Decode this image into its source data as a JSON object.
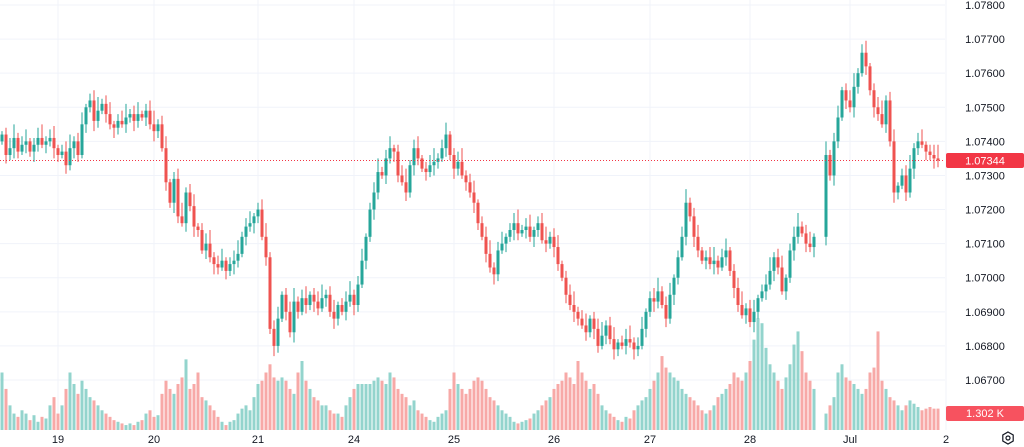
{
  "chart_data": {
    "type": "candlestick",
    "symbol_interval": "1h",
    "colors": {
      "up": "#26a69a",
      "down": "#ef5350",
      "up_volume": "#93d4cd",
      "down_volume": "#f7a9a7",
      "grid": "#f0f3fa",
      "price_label": "#f23645"
    },
    "ylim": [
      1.067,
      1.078
    ],
    "price_ticks": [
      "1.07800",
      "1.07700",
      "1.07600",
      "1.07500",
      "1.07400",
      "1.07300",
      "1.07200",
      "1.07100",
      "1.07000",
      "1.06900",
      "1.06800",
      "1.06700"
    ],
    "x_ticks": [
      {
        "label": "19",
        "index": 14
      },
      {
        "label": "20",
        "index": 38
      },
      {
        "label": "21",
        "index": 64
      },
      {
        "label": "24",
        "index": 88
      },
      {
        "label": "25",
        "index": 113
      },
      {
        "label": "26",
        "index": 138
      },
      {
        "label": "27",
        "index": 162
      },
      {
        "label": "28",
        "index": 187
      },
      {
        "label": "Jul",
        "index": 212
      },
      {
        "label": "2",
        "index": 236
      }
    ],
    "first_open": 1.074,
    "closes": [
      1.0742,
      1.0736,
      1.0738,
      1.0741,
      1.0737,
      1.0739,
      1.074,
      1.0737,
      1.0739,
      1.0741,
      1.0739,
      1.074,
      1.0741,
      1.0738,
      1.0736,
      1.0737,
      1.0733,
      1.0738,
      1.074,
      1.0736,
      1.0745,
      1.075,
      1.0752,
      1.0746,
      1.0749,
      1.0751,
      1.0748,
      1.0745,
      1.0744,
      1.0746,
      1.0745,
      1.0747,
      1.0748,
      1.0746,
      1.0748,
      1.0747,
      1.0749,
      1.0745,
      1.0743,
      1.0745,
      1.0738,
      1.0728,
      1.0722,
      1.0729,
      1.0718,
      1.0716,
      1.0725,
      1.0721,
      1.0715,
      1.0714,
      1.0708,
      1.071,
      1.0706,
      1.0704,
      1.0703,
      1.0705,
      1.0702,
      1.0704,
      1.0705,
      1.0707,
      1.0712,
      1.0715,
      1.0716,
      1.0718,
      1.072,
      1.0712,
      1.0706,
      1.0685,
      1.068,
      1.0688,
      1.0695,
      1.069,
      1.0684,
      1.0693,
      1.069,
      1.0694,
      1.0692,
      1.0695,
      1.0693,
      1.0691,
      1.0694,
      1.0695,
      1.069,
      1.0688,
      1.0692,
      1.069,
      1.0693,
      1.0695,
      1.0692,
      1.0698,
      1.0705,
      1.0712,
      1.072,
      1.0725,
      1.0731,
      1.073,
      1.0735,
      1.0738,
      1.0737,
      1.073,
      1.0728,
      1.0725,
      1.0733,
      1.0738,
      1.0735,
      1.0732,
      1.0731,
      1.0733,
      1.0734,
      1.0735,
      1.0738,
      1.0742,
      1.0736,
      1.0732,
      1.0734,
      1.073,
      1.0728,
      1.0725,
      1.0722,
      1.0716,
      1.0712,
      1.0707,
      1.0703,
      1.0701,
      1.0708,
      1.071,
      1.0712,
      1.0714,
      1.0716,
      1.0713,
      1.0714,
      1.0715,
      1.0712,
      1.0714,
      1.0716,
      1.0711,
      1.071,
      1.0712,
      1.0709,
      1.0704,
      1.07,
      1.0695,
      1.0692,
      1.069,
      1.0688,
      1.0686,
      1.0684,
      1.0688,
      1.0685,
      1.068,
      1.0683,
      1.0686,
      1.0682,
      1.0679,
      1.0681,
      1.068,
      1.0682,
      1.0681,
      1.0679,
      1.068,
      1.0685,
      1.069,
      1.0694,
      1.0693,
      1.0696,
      1.0692,
      1.0688,
      1.0695,
      1.07,
      1.0706,
      1.0712,
      1.0722,
      1.0718,
      1.0712,
      1.0708,
      1.0705,
      1.0706,
      1.0704,
      1.0705,
      1.0703,
      1.0706,
      1.0708,
      1.0702,
      1.0697,
      1.0692,
      1.0689,
      1.0691,
      1.0687,
      1.069,
      1.0694,
      1.0696,
      1.0698,
      1.0702,
      1.0706,
      1.0703,
      1.0696,
      1.07,
      1.0708,
      1.0712,
      1.0715,
      1.0713,
      1.071,
      1.0709,
      1.0712,
      null,
      null,
      1.0736,
      1.073,
      1.074,
      1.0747,
      1.0755,
      1.0752,
      1.075,
      1.0756,
      1.076,
      1.0766,
      1.0762,
      1.0755,
      1.075,
      1.0748,
      1.0745,
      1.0752,
      1.074,
      1.0725,
      1.0727,
      1.073,
      1.0725,
      1.0732,
      1.0738,
      1.074,
      1.0739,
      1.0737,
      1.0736,
      1.0735,
      1.07344
    ],
    "volumes_k": [
      3.5,
      2.5,
      1.5,
      1.0,
      0.8,
      1.2,
      1.0,
      0.6,
      0.9,
      0.5,
      0.8,
      0.7,
      1.5,
      2.0,
      1.0,
      1.5,
      2.5,
      3.5,
      2.8,
      2.2,
      3.0,
      2.5,
      2.0,
      1.8,
      1.5,
      1.2,
      1.0,
      0.8,
      0.6,
      0.5,
      0.4,
      0.3,
      0.4,
      0.3,
      0.5,
      0.6,
      1.0,
      1.2,
      0.8,
      0.9,
      2.2,
      3.0,
      2.5,
      2.2,
      2.8,
      3.2,
      4.3,
      2.5,
      2.8,
      3.5,
      2.0,
      1.8,
      1.5,
      1.2,
      0.8,
      0.5,
      0.3,
      0.5,
      0.6,
      1.0,
      1.3,
      1.5,
      1.2,
      2.0,
      2.8,
      3.0,
      3.5,
      4.0,
      3.2,
      3.0,
      3.2,
      3.0,
      2.5,
      2.2,
      3.5,
      4.2,
      3.0,
      2.5,
      2.0,
      1.8,
      1.5,
      1.5,
      1.2,
      1.0,
      1.0,
      0.8,
      1.5,
      2.0,
      2.5,
      2.8,
      2.8,
      2.8,
      2.8,
      3.0,
      3.2,
      3.0,
      2.8,
      3.5,
      3.2,
      2.5,
      2.2,
      2.0,
      1.5,
      1.8,
      1.2,
      1.0,
      0.8,
      0.6,
      0.5,
      0.8,
      1.0,
      1.2,
      2.5,
      3.5,
      2.8,
      2.5,
      2.2,
      2.5,
      3.0,
      3.2,
      3.0,
      2.5,
      2.0,
      1.8,
      1.5,
      1.2,
      1.0,
      0.8,
      0.5,
      0.4,
      0.5,
      0.6,
      0.7,
      1.0,
      1.2,
      1.5,
      1.8,
      2.0,
      2.5,
      2.8,
      3.0,
      3.5,
      3.2,
      2.8,
      4.2,
      3.5,
      3.0,
      2.5,
      2.8,
      2.2,
      1.5,
      1.2,
      1.0,
      0.8,
      0.6,
      0.5,
      0.8,
      0.7,
      1.2,
      1.5,
      1.8,
      2.0,
      2.5,
      3.0,
      3.5,
      4.5,
      3.8,
      3.5,
      3.2,
      3.0,
      2.5,
      2.2,
      2.0,
      1.8,
      1.5,
      1.2,
      1.0,
      1.2,
      1.5,
      2.0,
      2.2,
      2.5,
      2.8,
      3.5,
      3.2,
      3.0,
      3.5,
      4.2,
      5.5,
      6.8,
      6.5,
      5.0,
      4.0,
      3.5,
      3.0,
      2.5,
      3.2,
      4.0,
      5.2,
      6.0,
      4.8,
      3.5,
      3.0,
      2.5,
      0,
      0,
      1.0,
      1.5,
      2.0,
      3.5,
      4.0,
      3.2,
      3.0,
      2.8,
      2.5,
      2.2,
      2.5,
      3.5,
      3.8,
      6.0,
      3.0,
      2.5,
      2.0,
      1.8,
      1.5,
      1.2,
      1.5,
      1.8,
      1.6,
      1.4,
      1.2,
      1.3,
      1.4,
      1.3,
      1.302
    ],
    "volume_max_k": 7.0,
    "last_price_label": "1.07344",
    "last_volume_label": "1.302 K"
  }
}
